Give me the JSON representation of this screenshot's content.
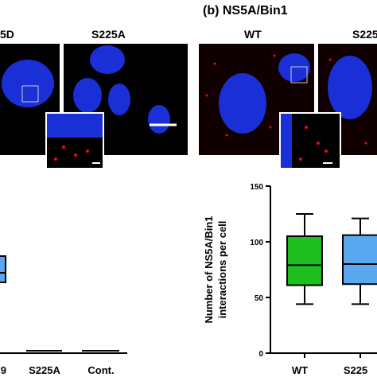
{
  "panel_a": {
    "image_labels": [
      "5D",
      "S225A"
    ],
    "x_labels": [
      "9",
      "S225A",
      "Cont."
    ]
  },
  "panel_b": {
    "title": "(b) NS5A/Bin1",
    "image_labels": [
      "WT",
      "S225"
    ]
  },
  "chart_data": {
    "type": "box",
    "ylabel": [
      "Number of NS5A/Bin1",
      "interactions per cell"
    ],
    "categories": [
      "WT",
      "S225"
    ],
    "boxes": [
      {
        "min": 44,
        "q1": 61,
        "median": 79,
        "q3": 105,
        "max": 125,
        "color": "#1fbf1f"
      },
      {
        "min": 44,
        "q1": 62,
        "median": 80,
        "q3": 106,
        "max": 121,
        "color": "#5aa9f0"
      }
    ],
    "ylim": [
      0,
      150
    ],
    "yticks": [
      0,
      50,
      100,
      150
    ]
  }
}
